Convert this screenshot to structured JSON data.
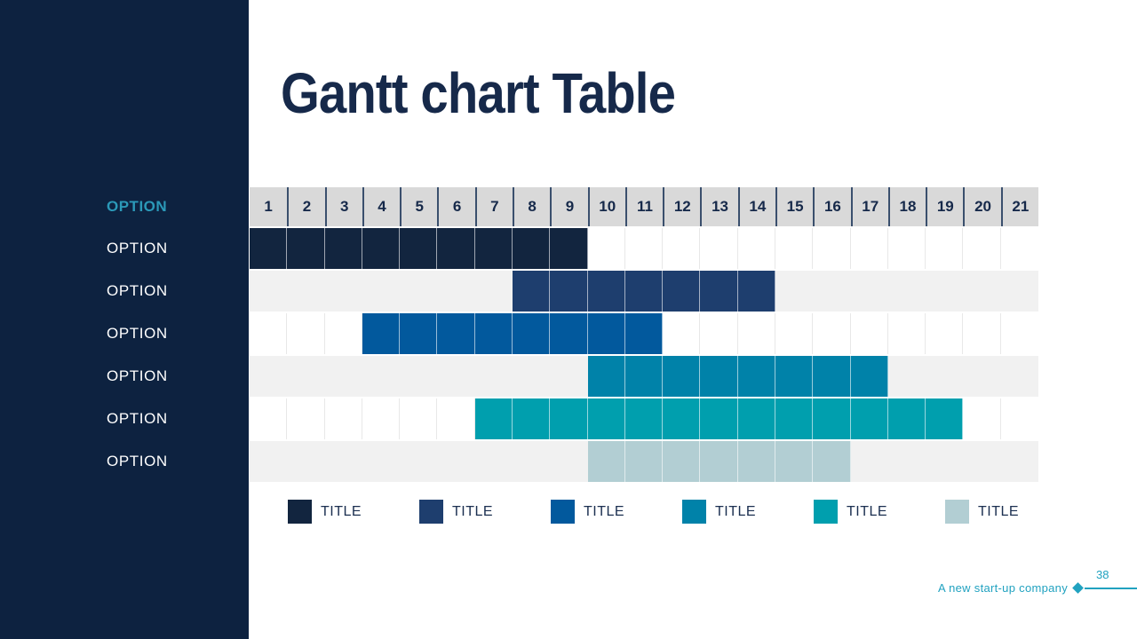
{
  "slide": {
    "title": "Gantt chart Table",
    "page_number": "38",
    "footer_text": "A new start-up company"
  },
  "sidebar": {
    "header_label": "OPTION"
  },
  "colors": {
    "sidebar_bg": "#0d2240",
    "title_text": "#16294a",
    "accent_teal": "#21a2c0",
    "option_header_teal": "#2b99b8",
    "header_cell_bg": "#d9d9d9",
    "header_cell_border": "#3a4f6d",
    "row_alt_bg": "#f1f1f1",
    "grid_line": "#e8e8e8"
  },
  "chart_data": {
    "type": "gantt",
    "title": "Gantt chart Table",
    "columns": [
      "1",
      "2",
      "3",
      "4",
      "5",
      "6",
      "7",
      "8",
      "9",
      "10",
      "11",
      "12",
      "13",
      "14",
      "15",
      "16",
      "17",
      "18",
      "19",
      "20",
      "21"
    ],
    "rows": [
      {
        "label": "OPTION",
        "start": 1,
        "end": 9,
        "color": "#12253f"
      },
      {
        "label": "OPTION",
        "start": 8,
        "end": 14,
        "color": "#1e3e6e"
      },
      {
        "label": "OPTION",
        "start": 4,
        "end": 11,
        "color": "#02599d"
      },
      {
        "label": "OPTION",
        "start": 10,
        "end": 17,
        "color": "#0082a9"
      },
      {
        "label": "OPTION",
        "start": 7,
        "end": 19,
        "color": "#009fae"
      },
      {
        "label": "OPTION",
        "start": 10,
        "end": 16,
        "color": "#b2ced3"
      }
    ],
    "legend": [
      {
        "label": "TITLE",
        "color": "#12253f"
      },
      {
        "label": "TITLE",
        "color": "#1e3e6e"
      },
      {
        "label": "TITLE",
        "color": "#02599d"
      },
      {
        "label": "TITLE",
        "color": "#0082a9"
      },
      {
        "label": "TITLE",
        "color": "#009fae"
      },
      {
        "label": "TITLE",
        "color": "#b2ced3"
      }
    ]
  }
}
